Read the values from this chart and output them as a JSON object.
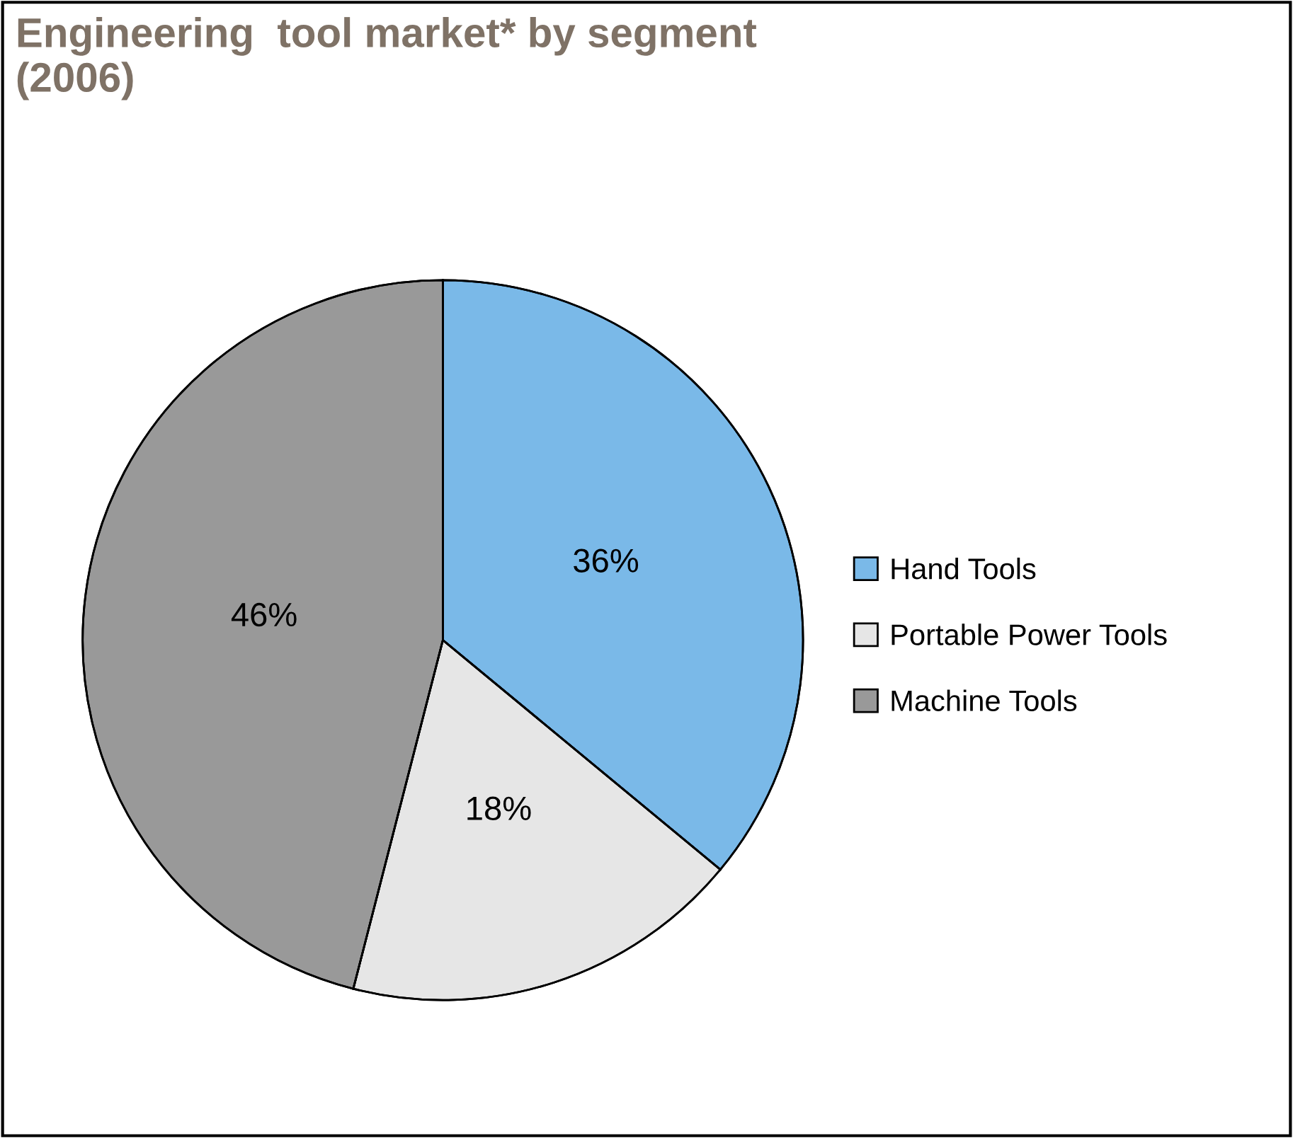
{
  "chart_data": {
    "type": "pie",
    "title": "Engineering  tool market* by segment\n(2006)",
    "categories": [
      "Hand Tools",
      "Portable Power Tools",
      "Machine Tools"
    ],
    "values": [
      36,
      18,
      46
    ],
    "colors": [
      "#7ab9e8",
      "#e6e6e6",
      "#999999"
    ],
    "data_labels": true,
    "value_labels": [
      "36%",
      "18%",
      "46%"
    ],
    "legend": "right"
  }
}
